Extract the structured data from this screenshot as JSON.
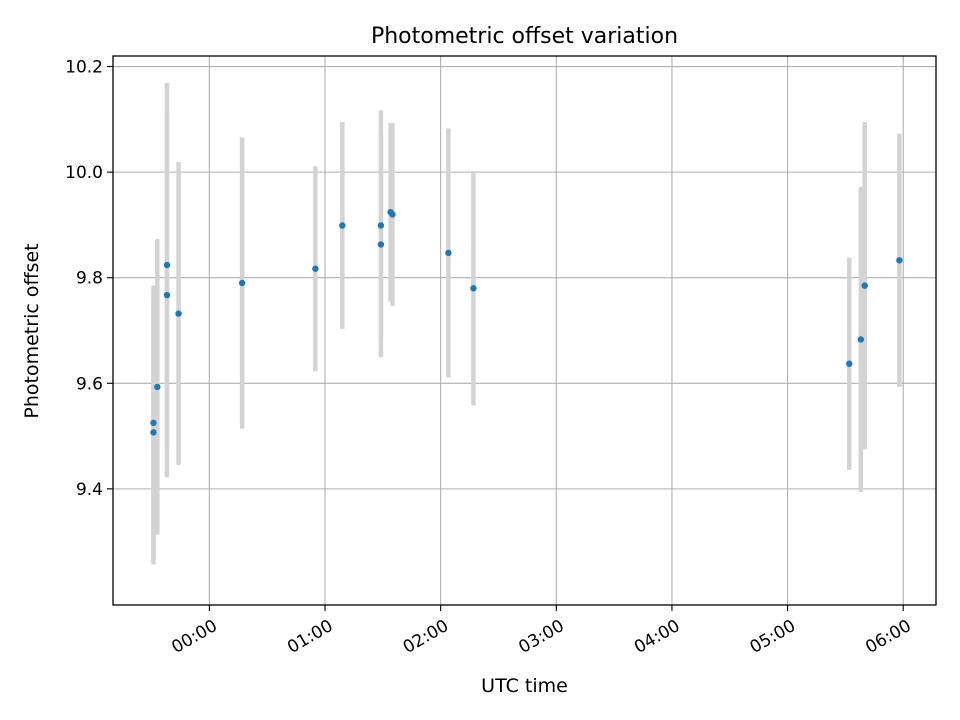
{
  "chart_data": {
    "type": "scatter",
    "title": "Photometric offset variation",
    "xlabel": "UTC time",
    "ylabel": "Photometric offset",
    "xlim": [
      "23:10",
      "06:17"
    ],
    "ylim": [
      9.18,
      10.22
    ],
    "x_ticks": [
      "00:00",
      "01:00",
      "02:00",
      "03:00",
      "04:00",
      "05:00",
      "06:00"
    ],
    "y_ticks": [
      9.4,
      9.6,
      9.8,
      10.0,
      10.2
    ],
    "y_tick_labels": [
      "9.4",
      "9.6",
      "9.8",
      "10.0",
      "10.2"
    ],
    "grid": true,
    "marker_color": "#1f77b4",
    "errorbar_color": "#d3d3d3",
    "points": [
      {
        "t": "23:31",
        "y": 9.525,
        "err": 0.26
      },
      {
        "t": "23:31",
        "y": 9.507,
        "err": 0.25
      },
      {
        "t": "23:33",
        "y": 9.593,
        "err": 0.28
      },
      {
        "t": "23:38",
        "y": 9.824,
        "err": 0.345
      },
      {
        "t": "23:38",
        "y": 9.767,
        "err": 0.345
      },
      {
        "t": "23:44",
        "y": 9.732,
        "err": 0.287
      },
      {
        "t": "00:17",
        "y": 9.79,
        "err": 0.276
      },
      {
        "t": "00:55",
        "y": 9.817,
        "err": 0.194
      },
      {
        "t": "01:09",
        "y": 9.899,
        "err": 0.196
      },
      {
        "t": "01:29",
        "y": 9.899,
        "err": 0.218
      },
      {
        "t": "01:29",
        "y": 9.863,
        "err": 0.214
      },
      {
        "t": "01:34",
        "y": 9.924,
        "err": 0.169
      },
      {
        "t": "01:35",
        "y": 9.92,
        "err": 0.173
      },
      {
        "t": "02:04",
        "y": 9.847,
        "err": 0.236
      },
      {
        "t": "02:17",
        "y": 9.78,
        "err": 0.222
      },
      {
        "t": "05:32",
        "y": 9.637,
        "err": 0.201
      },
      {
        "t": "05:38",
        "y": 9.683,
        "err": 0.289
      },
      {
        "t": "05:40",
        "y": 9.785,
        "err": 0.31
      },
      {
        "t": "05:58",
        "y": 9.833,
        "err": 0.24
      }
    ]
  }
}
